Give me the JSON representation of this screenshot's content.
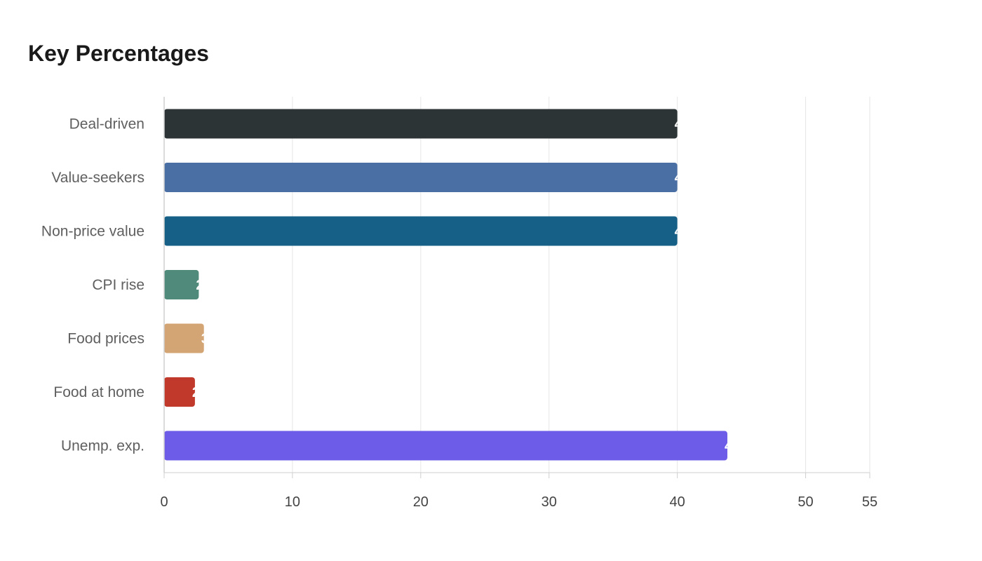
{
  "chart_data": {
    "type": "bar",
    "orientation": "horizontal",
    "title": "Key Percentages",
    "categories": [
      "Deal-driven",
      "Value-seekers",
      "Non-price value",
      "CPI rise",
      "Food prices",
      "Food at home",
      "Unemp. exp."
    ],
    "values": [
      40,
      40,
      40,
      2.7,
      3.1,
      2.4,
      43.9
    ],
    "colors": [
      "#2d3436",
      "#4a6fa5",
      "#166088",
      "#4f8a7a",
      "#d4a574",
      "#c0392b",
      "#6c5ce7"
    ],
    "xlim": [
      0,
      55
    ],
    "xticks": [
      0,
      10,
      20,
      30,
      40,
      50,
      55
    ],
    "xlabel": "",
    "ylabel": "",
    "grid": true,
    "data_labels": "inside-end, clipped"
  }
}
